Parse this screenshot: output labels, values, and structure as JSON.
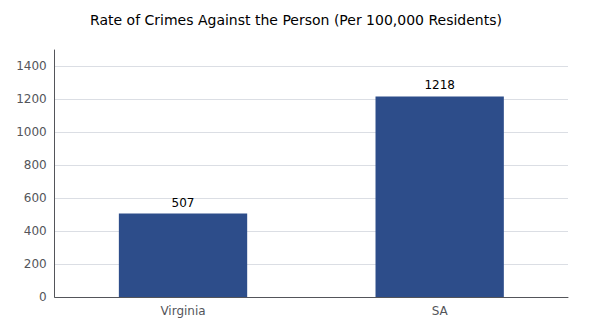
{
  "chart_data": {
    "type": "bar",
    "title": "Rate of Crimes Against the Person (Per 100,000 Residents)",
    "categories": [
      "Virginia",
      "SA"
    ],
    "values": [
      507,
      1218
    ],
    "color": "#2d4d8a",
    "ylim": [
      0,
      1500
    ],
    "yticks": [
      0,
      200,
      400,
      600,
      800,
      1000,
      1200,
      1400
    ],
    "grid": true,
    "data_labels": true
  }
}
